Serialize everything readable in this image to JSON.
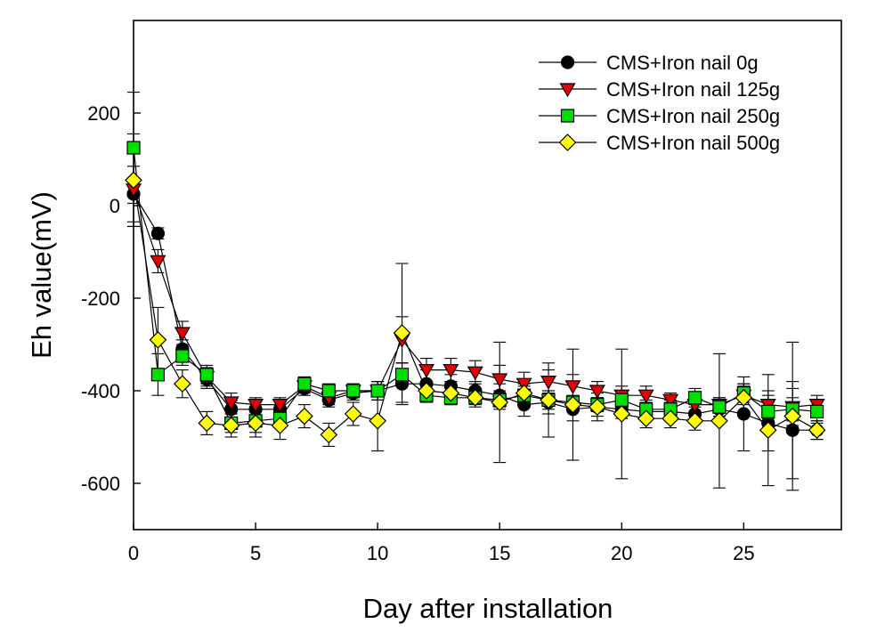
{
  "chart_data": {
    "type": "line",
    "title": "",
    "xlabel": "Day after installation",
    "ylabel": "Eh value(mV)",
    "xlim": [
      0,
      29
    ],
    "ylim": [
      -700,
      400
    ],
    "xticks": [
      0,
      5,
      10,
      15,
      20,
      25
    ],
    "yticks": [
      -600,
      -400,
      -200,
      0,
      200
    ],
    "xtick_labels": [
      "0",
      "5",
      "10",
      "15",
      "20",
      "25"
    ],
    "ytick_labels": [
      "-600",
      "-400",
      "-200",
      "0",
      "200"
    ],
    "legend_position": "top-right",
    "x": [
      0,
      1,
      2,
      3,
      4,
      5,
      6,
      7,
      8,
      9,
      10,
      11,
      12,
      13,
      14,
      15,
      16,
      17,
      18,
      19,
      20,
      21,
      22,
      23,
      24,
      25,
      26,
      27,
      28
    ],
    "series": [
      {
        "name": "CMS+Iron nail 0g",
        "marker": "circle",
        "color": "#000000",
        "values": [
          25,
          -60,
          -310,
          -375,
          -440,
          -440,
          -440,
          -395,
          -420,
          -405,
          -400,
          -385,
          -385,
          -390,
          -400,
          -410,
          -430,
          -425,
          -440,
          -435,
          -440,
          -445,
          -445,
          -450,
          -440,
          -450,
          -470,
          -485,
          -485
        ],
        "errors": [
          60,
          12,
          20,
          20,
          18,
          20,
          20,
          15,
          15,
          15,
          20,
          45,
          30,
          25,
          20,
          25,
          25,
          25,
          25,
          20,
          20,
          20,
          20,
          20,
          20,
          80,
          60,
          105,
          20
        ]
      },
      {
        "name": "CMS+Iron nail 125g",
        "marker": "triangle-down",
        "color": "#e00000",
        "values": [
          35,
          -120,
          -275,
          -370,
          -425,
          -430,
          -430,
          -390,
          -415,
          -400,
          -400,
          -290,
          -355,
          -355,
          -360,
          -375,
          -385,
          -380,
          -390,
          -400,
          -410,
          -410,
          -420,
          -430,
          -430,
          -410,
          -430,
          -435,
          -430
        ],
        "errors": [
          80,
          25,
          25,
          20,
          20,
          15,
          15,
          15,
          15,
          15,
          20,
          50,
          25,
          25,
          25,
          30,
          25,
          25,
          25,
          20,
          20,
          20,
          15,
          15,
          15,
          20,
          30,
          40,
          20
        ]
      },
      {
        "name": "CMS+Iron nail 250g",
        "marker": "square",
        "color": "#00e000",
        "values": [
          125,
          -365,
          -325,
          -365,
          -470,
          -465,
          -460,
          -385,
          -400,
          -400,
          -400,
          -365,
          -410,
          -415,
          -415,
          -420,
          -410,
          -420,
          -425,
          -430,
          -420,
          -440,
          -440,
          -415,
          -435,
          -405,
          -445,
          -440,
          -445
        ],
        "errors": [
          120,
          45,
          20,
          20,
          20,
          25,
          20,
          15,
          15,
          15,
          20,
          25,
          15,
          15,
          15,
          20,
          20,
          20,
          15,
          15,
          20,
          20,
          20,
          20,
          20,
          20,
          20,
          25,
          25
        ]
      },
      {
        "name": "CMS+Iron nail 500g",
        "marker": "diamond",
        "color": "#ffff00",
        "values": [
          55,
          -290,
          -385,
          -470,
          -475,
          -470,
          -475,
          -455,
          -495,
          -450,
          -465,
          -275,
          -400,
          -405,
          -415,
          -425,
          -405,
          -420,
          -430,
          -435,
          -450,
          -460,
          -460,
          -465,
          -465,
          -415,
          -485,
          -455,
          -485
        ],
        "errors": [
          100,
          70,
          30,
          25,
          25,
          30,
          30,
          25,
          25,
          25,
          65,
          150,
          20,
          25,
          20,
          130,
          20,
          80,
          120,
          30,
          140,
          20,
          20,
          20,
          145,
          30,
          120,
          160,
          20
        ]
      }
    ]
  }
}
